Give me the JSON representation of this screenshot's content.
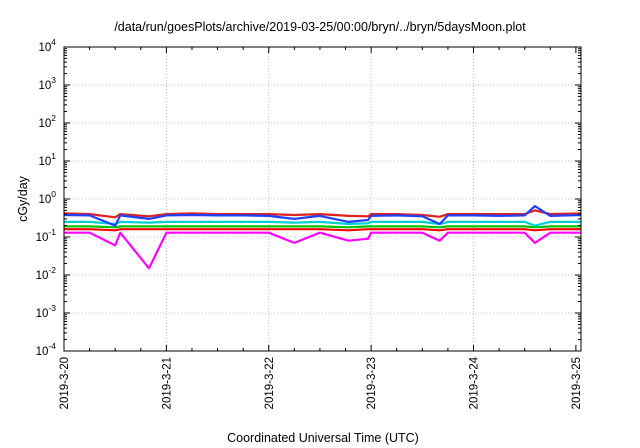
{
  "chart_data": {
    "type": "line",
    "title": "/data/run/goesPlots/archive/2019-03-25/00:00/bryn/../bryn/5daysMoon.plot",
    "xlabel": "Coordinated Universal Time (UTC)",
    "ylabel": "cGy/day",
    "yscale": "log",
    "ylim": [
      0.0001,
      10000
    ],
    "xlim": [
      "2019-3-20",
      "2019-3-25"
    ],
    "grid": true,
    "x_ticks": [
      "2019-3-20",
      "2019-3-21",
      "2019-3-22",
      "2019-3-23",
      "2019-3-24",
      "2019-3-25"
    ],
    "y_ticks": [
      {
        "value": 0.0001,
        "base": "10",
        "exp": "-4"
      },
      {
        "value": 0.001,
        "base": "10",
        "exp": "-3"
      },
      {
        "value": 0.01,
        "base": "10",
        "exp": "-2"
      },
      {
        "value": 0.1,
        "base": "10",
        "exp": "-1"
      },
      {
        "value": 1,
        "base": "10",
        "exp": "0"
      },
      {
        "value": 10,
        "base": "10",
        "exp": "1"
      },
      {
        "value": 100,
        "base": "10",
        "exp": "2"
      },
      {
        "value": 1000,
        "base": "10",
        "exp": "3"
      },
      {
        "value": 10000,
        "base": "10",
        "exp": "4"
      }
    ],
    "x_days": [
      0,
      0.25,
      0.5,
      0.55,
      0.83,
      1.0,
      1.25,
      1.5,
      1.75,
      2.0,
      2.25,
      2.5,
      2.78,
      2.97,
      3.0,
      3.25,
      3.5,
      3.67,
      3.75,
      4.0,
      4.25,
      4.5,
      4.6,
      4.75,
      5.05
    ],
    "series": [
      {
        "color": "#ff00ff",
        "values": [
          0.13,
          0.13,
          0.06,
          0.13,
          0.015,
          0.13,
          0.13,
          0.13,
          0.13,
          0.13,
          0.07,
          0.13,
          0.08,
          0.09,
          0.13,
          0.13,
          0.13,
          0.08,
          0.13,
          0.13,
          0.13,
          0.13,
          0.07,
          0.13,
          0.13
        ]
      },
      {
        "color": "#ff0000",
        "values": [
          0.16,
          0.16,
          0.15,
          0.16,
          0.16,
          0.16,
          0.16,
          0.16,
          0.16,
          0.16,
          0.16,
          0.16,
          0.15,
          0.16,
          0.16,
          0.16,
          0.16,
          0.15,
          0.16,
          0.16,
          0.16,
          0.16,
          0.15,
          0.16,
          0.16
        ]
      },
      {
        "color": "#00c000",
        "values": [
          0.19,
          0.19,
          0.18,
          0.19,
          0.19,
          0.19,
          0.19,
          0.19,
          0.19,
          0.19,
          0.19,
          0.19,
          0.18,
          0.19,
          0.19,
          0.19,
          0.19,
          0.18,
          0.19,
          0.19,
          0.19,
          0.19,
          0.18,
          0.19,
          0.19
        ]
      },
      {
        "color": "#00d0d0",
        "values": [
          0.25,
          0.25,
          0.22,
          0.25,
          0.24,
          0.25,
          0.25,
          0.25,
          0.25,
          0.25,
          0.24,
          0.25,
          0.22,
          0.23,
          0.25,
          0.25,
          0.25,
          0.22,
          0.25,
          0.25,
          0.25,
          0.25,
          0.2,
          0.25,
          0.25
        ]
      },
      {
        "color": "#dd2020",
        "values": [
          0.42,
          0.4,
          0.33,
          0.4,
          0.35,
          0.4,
          0.42,
          0.4,
          0.4,
          0.4,
          0.38,
          0.4,
          0.36,
          0.35,
          0.4,
          0.4,
          0.38,
          0.34,
          0.4,
          0.4,
          0.4,
          0.4,
          0.5,
          0.4,
          0.42
        ]
      },
      {
        "color": "#2040ff",
        "values": [
          0.38,
          0.37,
          0.2,
          0.37,
          0.3,
          0.37,
          0.38,
          0.37,
          0.37,
          0.36,
          0.3,
          0.36,
          0.25,
          0.28,
          0.36,
          0.37,
          0.35,
          0.22,
          0.37,
          0.37,
          0.36,
          0.37,
          0.65,
          0.36,
          0.38
        ]
      }
    ]
  }
}
